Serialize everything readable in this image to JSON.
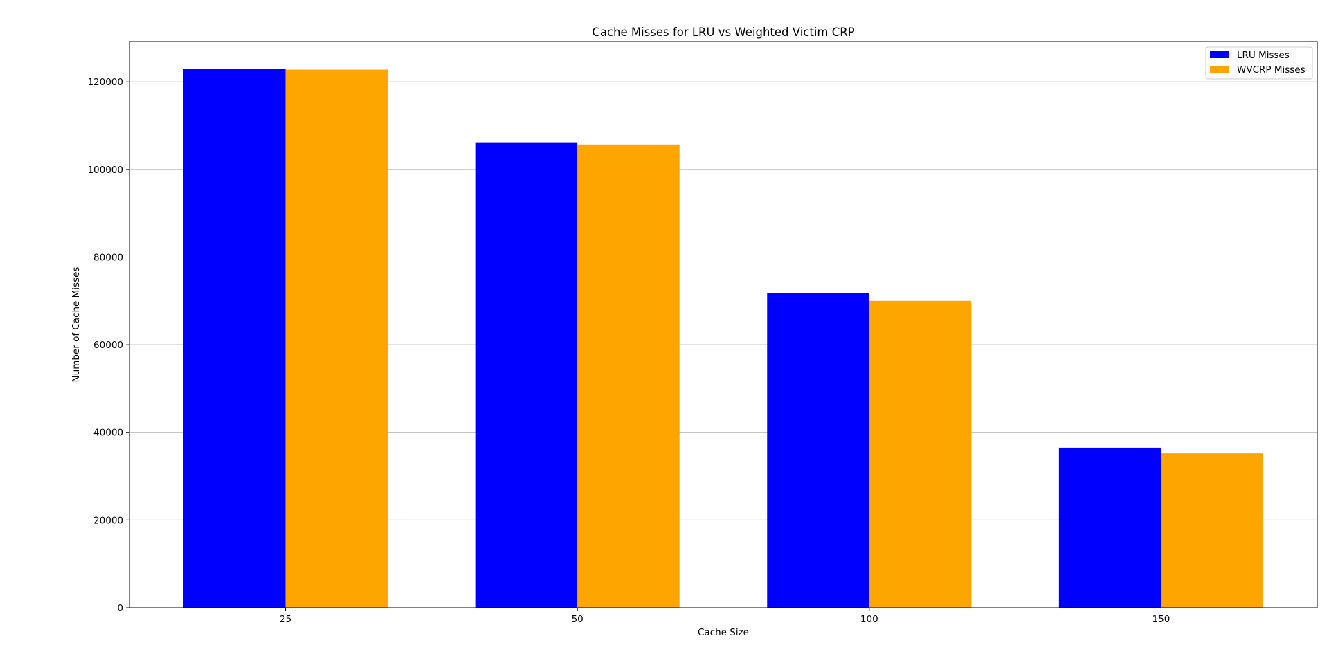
{
  "chart_data": {
    "type": "bar",
    "title": "Cache Misses for LRU vs Weighted Victim CRP",
    "xlabel": "Cache Size",
    "ylabel": "Number of Cache Misses",
    "categories": [
      "25",
      "50",
      "100",
      "150"
    ],
    "series": [
      {
        "name": "LRU Misses",
        "color": "#0000ff",
        "values": [
          123000,
          106200,
          71800,
          36500
        ]
      },
      {
        "name": "WVCRP Misses",
        "color": "#ffa500",
        "values": [
          122800,
          105700,
          70000,
          35200
        ]
      }
    ],
    "ylim": [
      0,
      129200
    ],
    "yticks": [
      0,
      20000,
      40000,
      60000,
      80000,
      100000,
      120000
    ],
    "ytick_labels": [
      "0",
      "20000",
      "40000",
      "60000",
      "80000",
      "100000",
      "120000"
    ],
    "grid": "y",
    "legend_position": "top-right"
  }
}
